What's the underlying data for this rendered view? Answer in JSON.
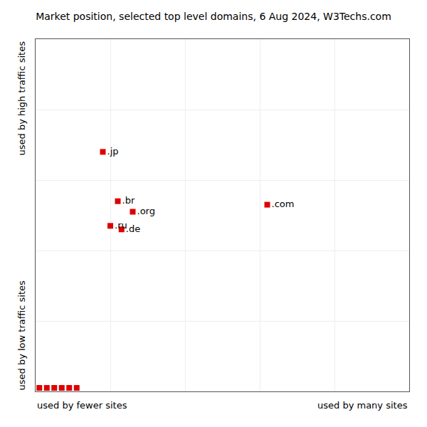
{
  "chart_data": {
    "type": "scatter",
    "title": "Market position, selected top level domains, 6 Aug 2024, W3Techs.com",
    "xlabel": [
      "used by fewer sites",
      "used by many sites"
    ],
    "ylabel": [
      "used by low traffic sites",
      "used by high traffic sites"
    ],
    "x": [
      18,
      22,
      26,
      20,
      23,
      62,
      1,
      3,
      5,
      7,
      9,
      11
    ],
    "values": [
      68,
      54,
      51,
      47,
      46,
      53,
      1,
      1,
      1,
      1,
      1,
      1
    ],
    "labels": [
      ".jp",
      ".br",
      ".org",
      ".ru",
      ".de",
      ".com",
      null,
      null,
      null,
      null,
      null,
      null
    ],
    "color": "#dd0000",
    "marker": "square",
    "xlim": [
      0,
      100
    ],
    "ylim": [
      0,
      100
    ],
    "xticks": [
      0,
      20,
      40,
      60,
      80,
      100
    ],
    "yticks": [
      0,
      20,
      40,
      60,
      80,
      100
    ],
    "grid": true,
    "tick_labels": false
  }
}
